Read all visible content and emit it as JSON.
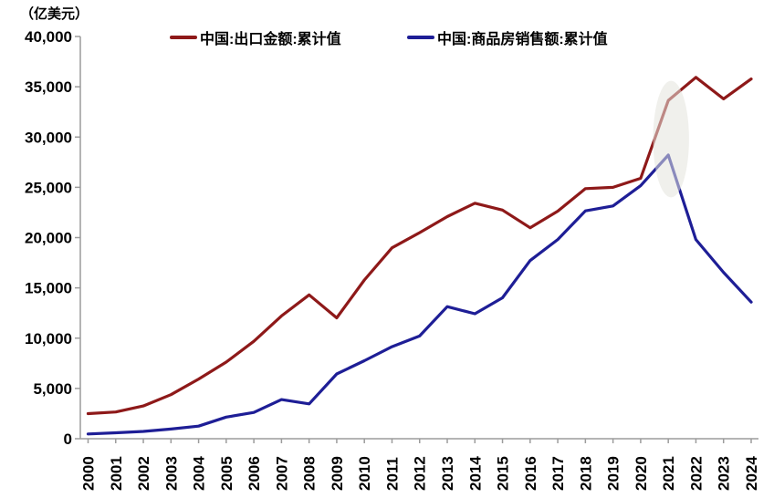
{
  "unit_label": "（亿美元）",
  "colors": {
    "export_line": "#8e1919",
    "housing_line": "#1e1e96",
    "axis": "#9c9c9c",
    "text": "#000000",
    "highlight_fill": "#e4e4dc",
    "background": "#ffffff"
  },
  "legend": [
    {
      "label": "中国:出口金额:累计值"
    },
    {
      "label": "中国:商品房销售额:累计值"
    }
  ],
  "chart_data": {
    "type": "line",
    "title": "",
    "xlabel": "",
    "ylabel": "（亿美元）",
    "x": [
      2000,
      2001,
      2002,
      2003,
      2004,
      2005,
      2006,
      2007,
      2008,
      2009,
      2010,
      2011,
      2012,
      2013,
      2014,
      2015,
      2016,
      2017,
      2018,
      2019,
      2020,
      2021,
      2022,
      2023,
      2024
    ],
    "series": [
      {
        "name": "中国:出口金额:累计值",
        "color": "#8e1919",
        "values": [
          2492,
          2661,
          3256,
          4382,
          5933,
          7620,
          9690,
          12205,
          14307,
          12016,
          15778,
          18984,
          20487,
          22090,
          23423,
          22735,
          20976,
          22633,
          24867,
          24995,
          25900,
          33640,
          35936,
          33800,
          35772
        ]
      },
      {
        "name": "中国:商品房销售额:累计值",
        "color": "#1e1e96",
        "values": [
          475,
          587,
          729,
          961,
          1253,
          2146,
          2613,
          3895,
          3464,
          6441,
          7756,
          9152,
          10215,
          13134,
          12425,
          14010,
          17715,
          19808,
          22655,
          23149,
          25161,
          28206,
          19810,
          16542,
          13588
        ]
      }
    ],
    "ylim": [
      0,
      40000
    ],
    "ytick_interval": 5000,
    "ytick_labels": [
      "0",
      "5,000",
      "10,000",
      "15,000",
      "20,000",
      "25,000",
      "30,000",
      "35,000",
      "40,000"
    ],
    "grid": false,
    "legend_position": "top",
    "annotation": {
      "shape": "ellipse-highlight",
      "description": "highlight around 2021 export surge and housing sales peak",
      "year_center": 2021.1,
      "year_half_span": 0.65,
      "value_center": 29800,
      "value_half_span": 5800,
      "color": "#e4e4dc",
      "opacity": 0.55
    }
  }
}
